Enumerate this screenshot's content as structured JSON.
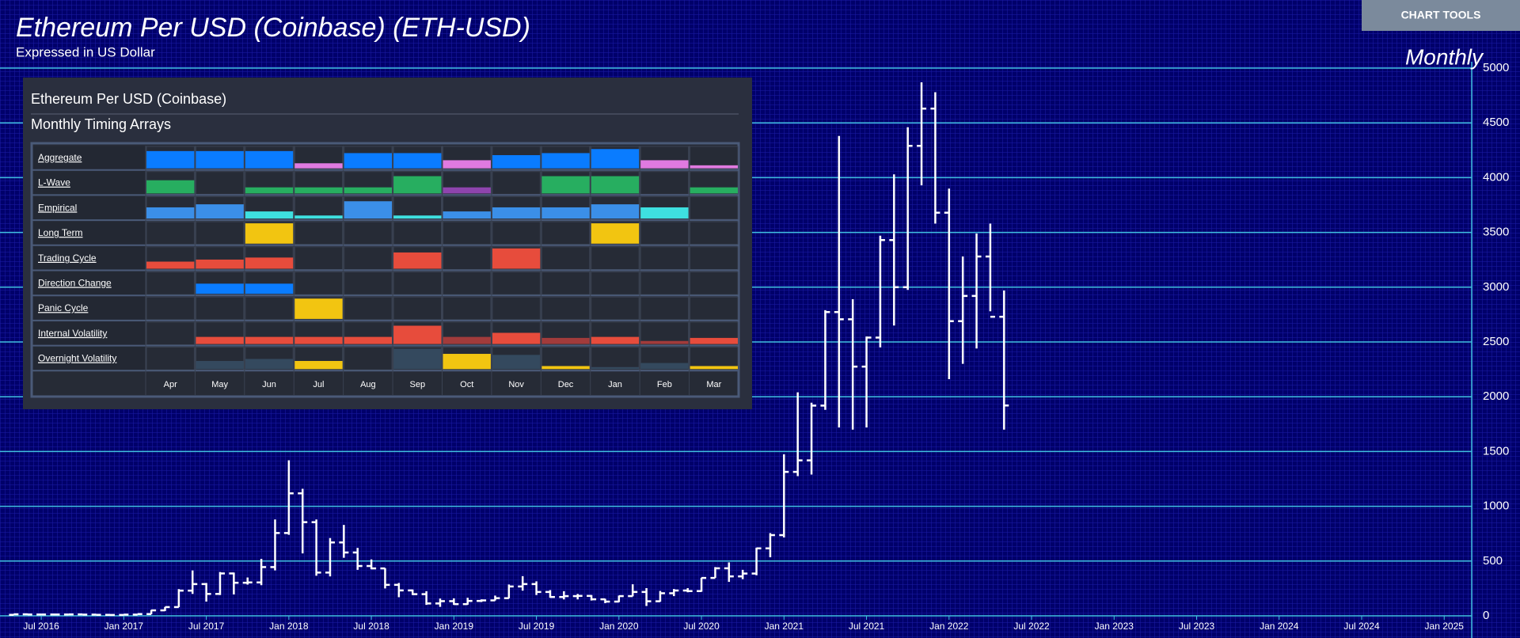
{
  "chart_data": {
    "type": "ohlc",
    "title": "Ethereum Per USD (Coinbase) (ETH-USD)",
    "subtitle": "Expressed in US Dollar",
    "period": "Monthly",
    "color": "#ffffff",
    "grid": true,
    "x": [
      "2016-05",
      "2016-06",
      "2016-07",
      "2016-08",
      "2016-09",
      "2016-10",
      "2016-11",
      "2016-12",
      "2017-01",
      "2017-02",
      "2017-03",
      "2017-04",
      "2017-05",
      "2017-06",
      "2017-07",
      "2017-08",
      "2017-09",
      "2017-10",
      "2017-11",
      "2017-12",
      "2018-01",
      "2018-02",
      "2018-03",
      "2018-04",
      "2018-05",
      "2018-06",
      "2018-07",
      "2018-08",
      "2018-09",
      "2018-10",
      "2018-11",
      "2018-12",
      "2019-01",
      "2019-02",
      "2019-03",
      "2019-04",
      "2019-05",
      "2019-06",
      "2019-07",
      "2019-08",
      "2019-09",
      "2019-10",
      "2019-11",
      "2019-12",
      "2020-01",
      "2020-02",
      "2020-03",
      "2020-04",
      "2020-05",
      "2020-06",
      "2020-07",
      "2020-08",
      "2020-09",
      "2020-10",
      "2020-11",
      "2020-12",
      "2021-01",
      "2021-02",
      "2021-03",
      "2021-04",
      "2021-05",
      "2021-06",
      "2021-07",
      "2021-08",
      "2021-09",
      "2021-10",
      "2021-11",
      "2021-12",
      "2022-01",
      "2022-02",
      "2022-03",
      "2022-04",
      "2022-05"
    ],
    "open": [
      9,
      14,
      12,
      12,
      12,
      13,
      11,
      9,
      8,
      11,
      16,
      50,
      80,
      230,
      290,
      200,
      387,
      302,
      305,
      445,
      756,
      1118,
      855,
      395,
      670,
      578,
      455,
      433,
      283,
      232,
      198,
      113,
      134,
      107,
      136,
      141,
      161,
      268,
      290,
      218,
      172,
      180,
      182,
      151,
      130,
      180,
      218,
      133,
      206,
      231,
      226,
      346,
      434,
      360,
      386,
      616,
      737,
      1314,
      1419,
      1919,
      2773,
      2707,
      2275,
      2540,
      3430,
      3000,
      4290,
      4630,
      3680,
      2690,
      2920,
      3280,
      2730
    ],
    "high": [
      14,
      21,
      15,
      12,
      14,
      13,
      12,
      9,
      12,
      16,
      54,
      81,
      244,
      414,
      300,
      400,
      395,
      350,
      520,
      880,
      1420,
      1160,
      880,
      710,
      830,
      620,
      515,
      435,
      300,
      240,
      225,
      158,
      160,
      165,
      150,
      185,
      286,
      362,
      315,
      235,
      225,
      200,
      190,
      155,
      185,
      288,
      253,
      227,
      245,
      253,
      348,
      445,
      488,
      420,
      622,
      755,
      1475,
      2040,
      1945,
      2790,
      4380,
      2890,
      2550,
      3470,
      4030,
      4460,
      4870,
      4780,
      3900,
      3280,
      3490,
      3580,
      2970
    ],
    "low": [
      9,
      11,
      10,
      10,
      12,
      10,
      9,
      7,
      8,
      10,
      15,
      44,
      79,
      200,
      130,
      190,
      195,
      285,
      280,
      415,
      740,
      570,
      366,
      360,
      530,
      420,
      425,
      250,
      170,
      190,
      100,
      82,
      100,
      102,
      126,
      140,
      160,
      230,
      190,
      165,
      150,
      150,
      140,
      116,
      125,
      178,
      90,
      129,
      180,
      215,
      220,
      346,
      310,
      335,
      370,
      535,
      715,
      1275,
      1290,
      1880,
      1720,
      1700,
      1720,
      2450,
      2650,
      2975,
      3930,
      3580,
      2160,
      2300,
      2440,
      2780,
      1700
    ],
    "close": [
      14,
      12,
      12,
      12,
      13,
      11,
      9,
      8,
      11,
      16,
      50,
      80,
      230,
      290,
      200,
      387,
      302,
      305,
      445,
      756,
      1118,
      855,
      395,
      670,
      578,
      455,
      433,
      283,
      232,
      198,
      113,
      134,
      107,
      136,
      141,
      161,
      268,
      290,
      218,
      172,
      180,
      182,
      151,
      130,
      180,
      218,
      133,
      206,
      231,
      226,
      346,
      434,
      360,
      386,
      616,
      737,
      1314,
      1419,
      1919,
      2773,
      2707,
      2275,
      2540,
      3430,
      3000,
      4290,
      4630,
      3680,
      2690,
      2920,
      3280,
      2730,
      1920
    ],
    "xlim": [
      "2016-04",
      "2025-03"
    ],
    "xticks": [
      {
        "value": "2016-07",
        "label": "Jul 2016"
      },
      {
        "value": "2017-01",
        "label": "Jan 2017"
      },
      {
        "value": "2017-07",
        "label": "Jul 2017"
      },
      {
        "value": "2018-01",
        "label": "Jan 2018"
      },
      {
        "value": "2018-07",
        "label": "Jul 2018"
      },
      {
        "value": "2019-01",
        "label": "Jan 2019"
      },
      {
        "value": "2019-07",
        "label": "Jul 2019"
      },
      {
        "value": "2020-01",
        "label": "Jan 2020"
      },
      {
        "value": "2020-07",
        "label": "Jul 2020"
      },
      {
        "value": "2021-01",
        "label": "Jan 2021"
      },
      {
        "value": "2021-07",
        "label": "Jul 2021"
      },
      {
        "value": "2022-01",
        "label": "Jan 2022"
      },
      {
        "value": "2022-07",
        "label": "Jul 2022"
      },
      {
        "value": "2023-01",
        "label": "Jan 2023"
      },
      {
        "value": "2023-07",
        "label": "Jul 2023"
      },
      {
        "value": "2024-01",
        "label": "Jan 2024"
      },
      {
        "value": "2024-07",
        "label": "Jul 2024"
      },
      {
        "value": "2025-01",
        "label": "Jan 2025"
      }
    ],
    "ylim": [
      0,
      5000
    ],
    "yticks": [
      0,
      500,
      1000,
      1500,
      2000,
      2500,
      3000,
      3500,
      4000,
      4500,
      5000
    ]
  },
  "toolbar": {
    "button": "CHART TOOLS"
  },
  "timing_panel": {
    "title": "Ethereum Per USD (Coinbase)",
    "subtitle": "Monthly Timing Arrays",
    "months": [
      "Apr",
      "May",
      "Jun",
      "Jul",
      "Aug",
      "Sep",
      "Oct",
      "Nov",
      "Dec",
      "Jan",
      "Feb",
      "Mar"
    ],
    "rows": [
      {
        "label": "Aggregate",
        "values": [
          0.85,
          0.85,
          0.85,
          0.25,
          0.75,
          0.75,
          0.4,
          0.65,
          0.75,
          0.95,
          0.4,
          0.15
        ],
        "colors": [
          "#0a7cff",
          "#0a7cff",
          "#0a7cff",
          "#e07ae0",
          "#0a7cff",
          "#0a7cff",
          "#e07ae0",
          "#0a7cff",
          "#0a7cff",
          "#0a7cff",
          "#e07ae0",
          "#e07ae0"
        ]
      },
      {
        "label": "L-Wave",
        "values": [
          0.65,
          0,
          0.3,
          0.3,
          0.3,
          0.85,
          0.3,
          0,
          0.85,
          0.85,
          0,
          0.3
        ],
        "colors": [
          "#27ae60",
          null,
          "#27ae60",
          "#27ae60",
          "#27ae60",
          "#27ae60",
          "#8e44ad",
          null,
          "#27ae60",
          "#27ae60",
          null,
          "#27ae60"
        ]
      },
      {
        "label": "Empirical",
        "values": [
          0.55,
          0.7,
          0.35,
          0.15,
          0.85,
          0.15,
          0.35,
          0.55,
          0.55,
          0.7,
          0.55,
          0
        ],
        "colors": [
          "#3b8fe8",
          "#3b8fe8",
          "#3ee0e0",
          "#3ee0e0",
          "#3b8fe8",
          "#3ee0e0",
          "#3b8fe8",
          "#3b8fe8",
          "#3b8fe8",
          "#3b8fe8",
          "#3ee0e0",
          null
        ]
      },
      {
        "label": "Long Term",
        "values": [
          0,
          0,
          1,
          0,
          0,
          0,
          0,
          0,
          0,
          1,
          0,
          0
        ],
        "colors": [
          null,
          null,
          "#f2c511",
          null,
          null,
          null,
          null,
          null,
          null,
          "#f2c511",
          null,
          null
        ]
      },
      {
        "label": "Trading Cycle",
        "values": [
          0.35,
          0.45,
          0.55,
          0,
          0,
          0.8,
          0,
          1,
          0,
          0,
          0,
          0
        ],
        "colors": [
          "#e74c3c",
          "#e74c3c",
          "#e74c3c",
          null,
          null,
          "#e74c3c",
          null,
          "#e74c3c",
          null,
          null,
          null,
          null
        ]
      },
      {
        "label": "Direction Change",
        "values": [
          0,
          0.5,
          0.5,
          0,
          0,
          0,
          0,
          0,
          0,
          0,
          0,
          0
        ],
        "colors": [
          null,
          "#0a7cff",
          "#0a7cff",
          null,
          null,
          null,
          null,
          null,
          null,
          null,
          null,
          null
        ]
      },
      {
        "label": "Panic Cycle",
        "values": [
          0,
          0,
          0,
          1,
          0,
          0,
          0,
          0,
          0,
          0,
          0,
          0
        ],
        "colors": [
          null,
          null,
          null,
          "#f2c511",
          null,
          null,
          null,
          null,
          null,
          null,
          null,
          null
        ]
      },
      {
        "label": "Internal Volatility",
        "values": [
          0,
          0.35,
          0.35,
          0.35,
          0.35,
          0.9,
          0.35,
          0.55,
          0.3,
          0.35,
          0.15,
          0.3
        ],
        "colors": [
          null,
          "#e74c3c",
          "#e74c3c",
          "#e74c3c",
          "#e74c3c",
          "#e74c3c",
          "#a23b3b",
          "#e74c3c",
          "#a23b3b",
          "#e74c3c",
          "#a23b3b",
          "#e74c3c"
        ]
      },
      {
        "label": "Overnight Volatility",
        "values": [
          0,
          0.4,
          0.5,
          0.4,
          0,
          1,
          0.75,
          0.7,
          0.15,
          0.1,
          0.3,
          0.15
        ],
        "colors": [
          null,
          "#34495e",
          "#34495e",
          "#f2c511",
          null,
          "#34495e",
          "#f2c511",
          "#34495e",
          "#f2c511",
          "#34495e",
          "#34495e",
          "#f2c511"
        ]
      }
    ]
  }
}
